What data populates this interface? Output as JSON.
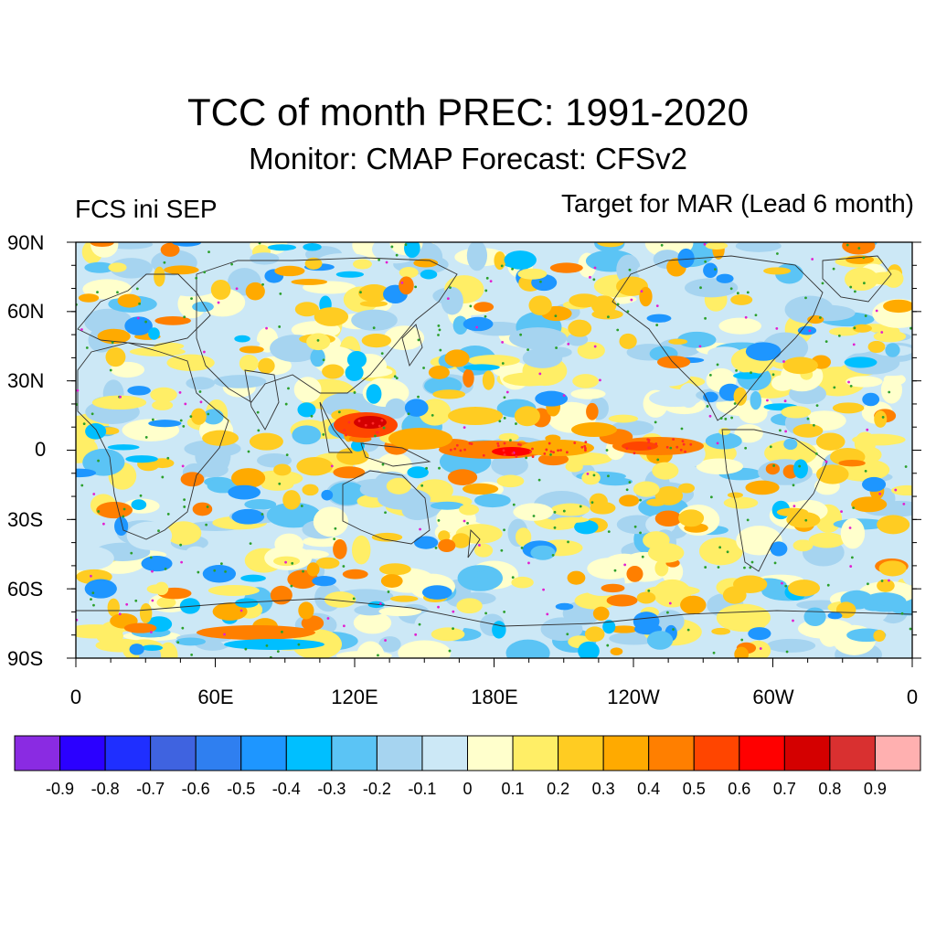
{
  "header": {
    "title": "TCC of month PREC: 1991-2020",
    "subtitle": "Monitor: CMAP   Forecast: CFSv2",
    "left_label": "FCS ini SEP",
    "right_label": "Target for MAR (Lead 6 month)"
  },
  "map": {
    "lat_labels": [
      "90N",
      "60N",
      "30N",
      "0",
      "30S",
      "60S",
      "90S"
    ],
    "lon_labels": [
      "0",
      "60E",
      "120E",
      "180E",
      "120W",
      "60W",
      "0"
    ],
    "projection": "cylindrical-equidistant",
    "field": "temporal correlation coefficient",
    "stippling_colors": {
      "positive_significant": "#2ca02c",
      "strong": "#ff2a2a",
      "negative_significant": "#e21fd0"
    }
  },
  "colorbar": {
    "labels": [
      "-0.9",
      "-0.8",
      "-0.7",
      "-0.6",
      "-0.5",
      "-0.4",
      "-0.3",
      "-0.2",
      "-0.1",
      "0",
      "0.1",
      "0.2",
      "0.3",
      "0.4",
      "0.5",
      "0.6",
      "0.7",
      "0.8",
      "0.9"
    ],
    "colors": [
      "#8a2be2",
      "#2b00ff",
      "#1f2fff",
      "#3f63e0",
      "#2f7ff0",
      "#1e96ff",
      "#00bfff",
      "#5bc4f5",
      "#a6d4f0",
      "#cce8f6",
      "#ffffcc",
      "#ffee66",
      "#ffcc22",
      "#ffaa00",
      "#ff7f00",
      "#ff4500",
      "#ff0000",
      "#d40000",
      "#d93030",
      "#ffb0b0"
    ]
  }
}
